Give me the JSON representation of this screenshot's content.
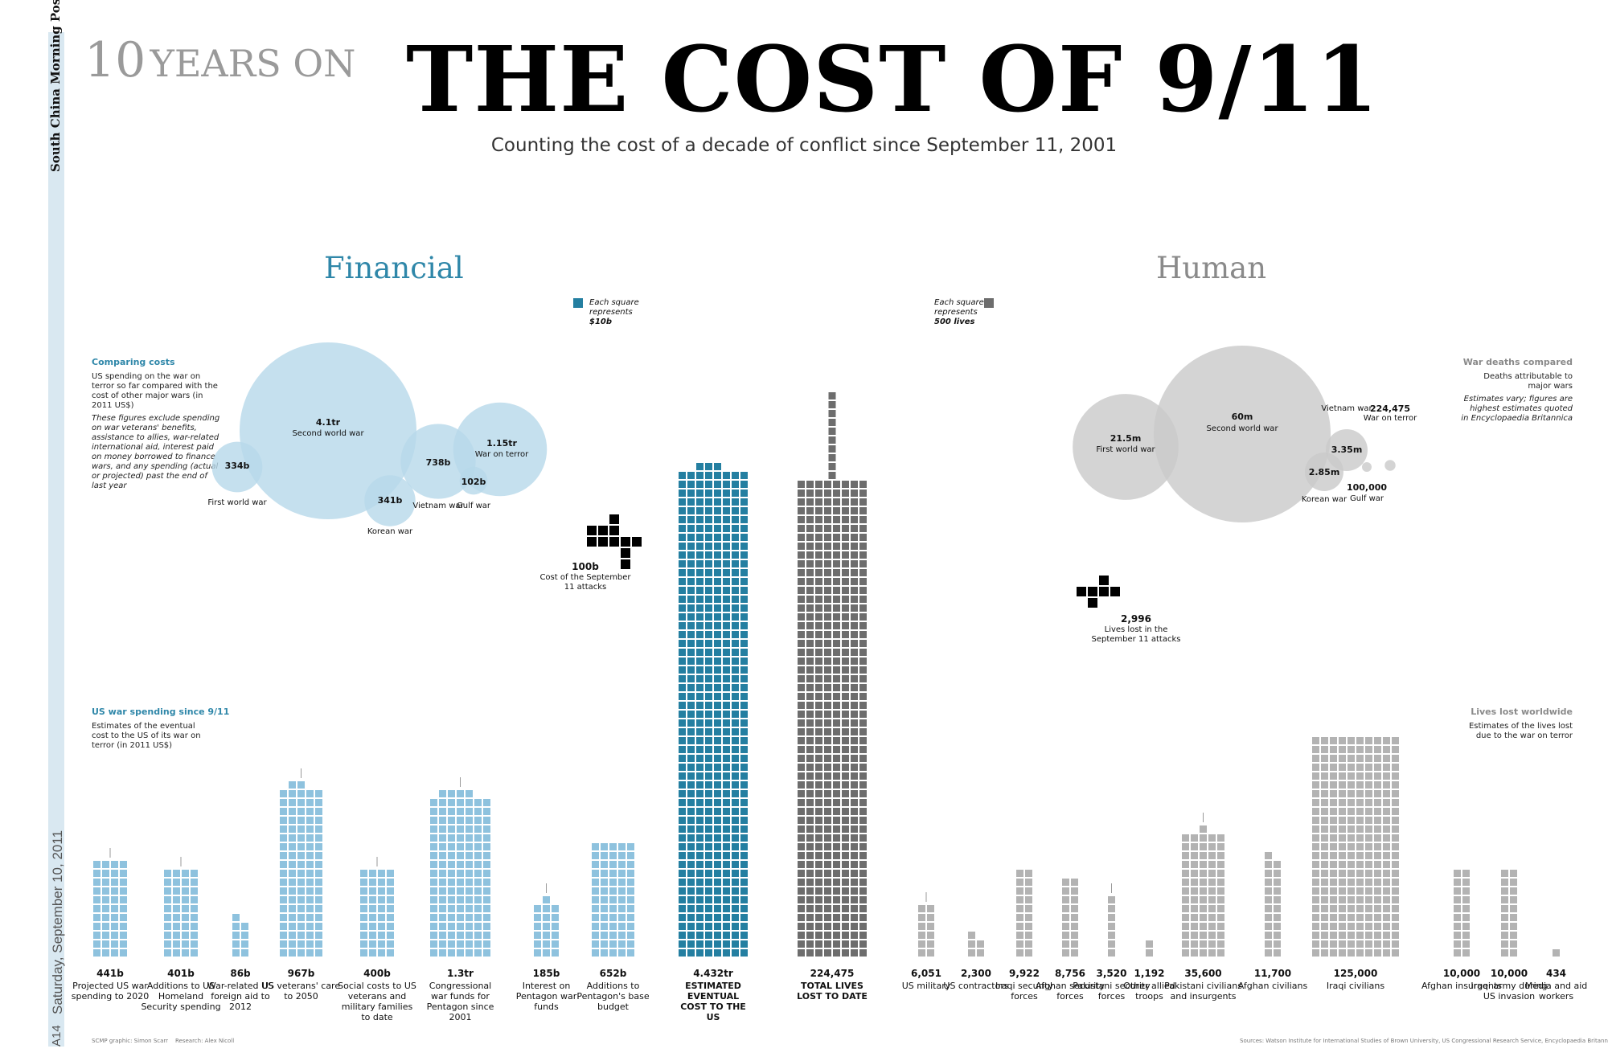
{
  "masthead": {
    "brand": "South China Morning Post",
    "date": "Saturday, September 10, 2011",
    "page": "A14"
  },
  "kicker": {
    "number": "10",
    "text": "YEARS ON"
  },
  "title": "THE COST OF 9/11",
  "subtitle": "Counting the cost of a decade of conflict since September 11, 2001",
  "colors": {
    "financial_light": "#8ec2de",
    "financial_dark": "#247fa1",
    "human_light": "#b3b3b3",
    "human_dark": "#6d6d6d",
    "bubble_blue": "#b6d8ea",
    "bubble_grey": "#c9c9c9",
    "section_blue": "#2f87a9",
    "section_grey": "#8a8a8a",
    "attack": "#000000"
  },
  "sections": {
    "financial": "Financial",
    "human": "Human"
  },
  "legends": {
    "financial": {
      "line1": "Each square",
      "line2": "represents",
      "value": "$10b"
    },
    "human": {
      "line1": "Each square",
      "line2": "represents",
      "value": "500 lives"
    }
  },
  "notes": {
    "comparing": {
      "title": "Comparing costs",
      "body": "US spending on the war on terror so far compared with the cost of other major wars (in 2011 US$)",
      "italic": "These figures exclude spending on war veterans' benefits, assistance to allies, war-related international aid, interest paid on money borrowed to finance wars, and any spending (actual or projected) past the end of last year"
    },
    "spending": {
      "title": "US war spending since 9/11",
      "body": "Estimates of the eventual cost to the US of its war on terror (in 2011 US$)"
    },
    "deaths": {
      "title": "War deaths compared",
      "body": "Deaths attributable to major wars",
      "italic": "Estimates vary; figures are highest estimates quoted in Encyclopaedia Britannica"
    },
    "lives": {
      "title": "Lives lost worldwide",
      "body": "Estimates of the lives lost due to the war on terror"
    }
  },
  "attacks": {
    "financial": {
      "value": "100b",
      "label": "Cost of the September 11 attacks"
    },
    "human": {
      "value": "2,996",
      "label": "Lives lost in the September 11 attacks"
    }
  },
  "credits": {
    "graphic": "SCMP graphic: Simon Scarr",
    "research": "Research: Alex Nicoll"
  },
  "sources": "Sources: Watson Institute for International Studies of Brown University, US Congressional Research Service, Encyclopaedia Britannica",
  "chart_data": [
    {
      "type": "bar",
      "title": "US war spending since 9/11",
      "unit": "US$ billions (2011)",
      "categories": [
        "Projected US war spending to 2020",
        "Additions to US Homeland Security spending",
        "War-related US foreign aid to 2012",
        "US veterans' care to 2050",
        "Social costs to US veterans and military families to date",
        "Congressional war funds for Pentagon since 2001",
        "Interest on Pentagon war funds",
        "Additions to Pentagon's base budget",
        "ESTIMATED EVENTUAL COST TO THE US"
      ],
      "value_labels": [
        "441b",
        "401b",
        "86b",
        "967b",
        "400b",
        "1.3tr",
        "185b",
        "652b",
        "4.432tr"
      ],
      "values": [
        441,
        401,
        86,
        967,
        400,
        1300,
        185,
        652,
        4432
      ]
    },
    {
      "type": "bar",
      "title": "Lives lost worldwide",
      "unit": "lives",
      "categories": [
        "TOTAL LIVES LOST TO DATE",
        "US military",
        "US contractors",
        "Iraqi security forces",
        "Afghan security forces",
        "Pakistani security forces",
        "Other allied troops",
        "Pakistani civilians and insurgents",
        "Afghan civilians",
        "Iraqi civilians",
        "Afghan insurgents",
        "Iraqi army during US invasion",
        "Media and aid workers"
      ],
      "value_labels": [
        "224,475",
        "6,051",
        "2,300",
        "9,922",
        "8,756",
        "3,520",
        "1,192",
        "35,600",
        "11,700",
        "125,000",
        "10,000",
        "10,000",
        "434"
      ],
      "values": [
        224475,
        6051,
        2300,
        9922,
        8756,
        3520,
        1192,
        35600,
        11700,
        125000,
        10000,
        10000,
        434
      ]
    },
    {
      "type": "bubble",
      "title": "Comparing costs",
      "unit": "US$ (2011)",
      "categories": [
        "First world war",
        "Second world war",
        "Korean war",
        "Vietnam war",
        "Gulf war",
        "War on terror"
      ],
      "value_labels": [
        "334b",
        "4.1tr",
        "341b",
        "738b",
        "102b",
        "1.15tr"
      ],
      "values": [
        334,
        4100,
        341,
        738,
        102,
        1150
      ]
    },
    {
      "type": "bubble",
      "title": "War deaths compared",
      "unit": "deaths",
      "categories": [
        "First world war",
        "Second world war",
        "Korean war",
        "Vietnam war",
        "Gulf war",
        "War on terror"
      ],
      "value_labels": [
        "21.5m",
        "60m",
        "2.85m",
        "3.35m",
        "100,000",
        "224,475"
      ],
      "values": [
        21500000,
        60000000,
        2850000,
        3350000,
        100000,
        224475
      ]
    }
  ]
}
